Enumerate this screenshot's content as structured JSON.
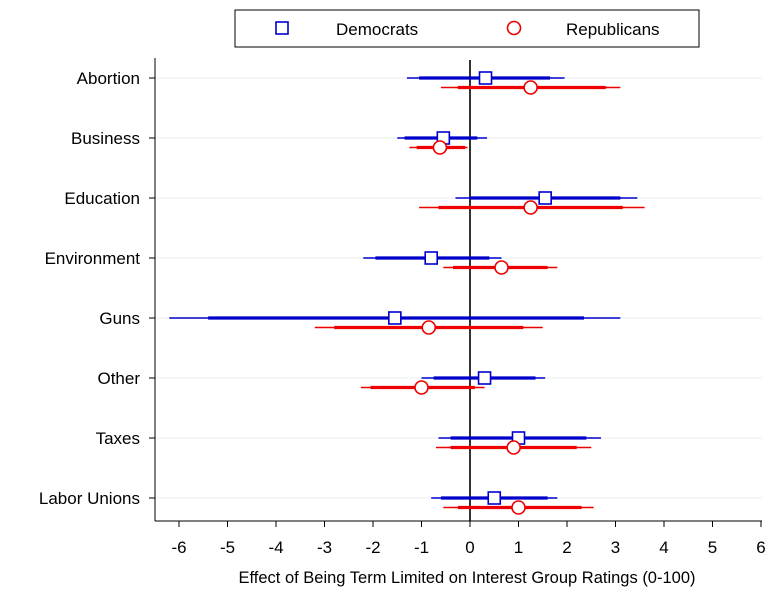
{
  "chart_data": {
    "type": "coefficient-plot",
    "title": "",
    "xlabel": "Effect of Being Term Limited on Interest Group Ratings (0-100)",
    "ylabel": "",
    "xlim": [
      -6.5,
      6.1
    ],
    "x_ticks": [
      -6,
      -5,
      -4,
      -3,
      -2,
      -1,
      0,
      1,
      2,
      3,
      4,
      5,
      6
    ],
    "x_tick_labels": [
      "-6",
      "-5",
      "-4",
      "-3",
      "-2",
      "-1",
      "0",
      "1",
      "2",
      "3",
      "4",
      "5",
      "6"
    ],
    "reference_line_x": 0,
    "grid": "horizontal",
    "legend_position": "top",
    "categories": [
      "Abortion",
      "Business",
      "Education",
      "Environment",
      "Guns",
      "Other",
      "Taxes",
      "Labor Unions"
    ],
    "series": [
      {
        "name": "Democrats",
        "color": "#0000cc",
        "marker": "square",
        "estimate": [
          0.32,
          -0.55,
          1.55,
          -0.8,
          -1.55,
          0.3,
          1.0,
          0.5
        ],
        "ci90": [
          [
            -1.05,
            1.65
          ],
          [
            -1.35,
            0.15
          ],
          [
            0.0,
            3.1
          ],
          [
            -1.95,
            0.4
          ],
          [
            -5.4,
            2.35
          ],
          [
            -0.75,
            1.35
          ],
          [
            -0.4,
            2.4
          ],
          [
            -0.6,
            1.6
          ]
        ],
        "ci95": [
          [
            -1.3,
            1.95
          ],
          [
            -1.5,
            0.35
          ],
          [
            -0.3,
            3.45
          ],
          [
            -2.2,
            0.65
          ],
          [
            -6.2,
            3.1
          ],
          [
            -1.0,
            1.55
          ],
          [
            -0.65,
            2.7
          ],
          [
            -0.8,
            1.8
          ]
        ]
      },
      {
        "name": "Republicans",
        "color": "#ee0000",
        "marker": "circle",
        "estimate": [
          1.25,
          -0.62,
          1.25,
          0.65,
          -0.85,
          -1.0,
          0.9,
          1.0
        ],
        "ci90": [
          [
            -0.25,
            2.8
          ],
          [
            -1.1,
            -0.1
          ],
          [
            -0.65,
            3.15
          ],
          [
            -0.35,
            1.6
          ],
          [
            -2.8,
            1.1
          ],
          [
            -2.05,
            0.1
          ],
          [
            -0.4,
            2.2
          ],
          [
            -0.25,
            2.3
          ]
        ],
        "ci95": [
          [
            -0.6,
            3.1
          ],
          [
            -1.25,
            -0.05
          ],
          [
            -1.05,
            3.6
          ],
          [
            -0.55,
            1.8
          ],
          [
            -3.2,
            1.5
          ],
          [
            -2.25,
            0.3
          ],
          [
            -0.7,
            2.5
          ],
          [
            -0.55,
            2.55
          ]
        ]
      }
    ]
  }
}
